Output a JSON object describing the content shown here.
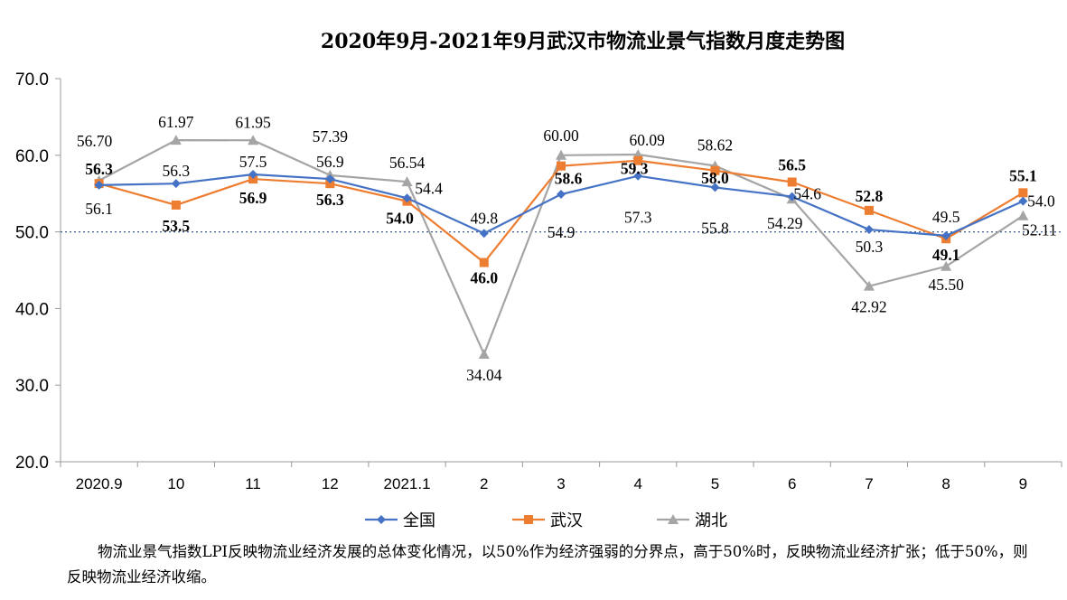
{
  "chart_data": {
    "type": "line",
    "title": "2020年9月-2021年9月武汉市物流业景气指数月度走势图",
    "categories": [
      "2020.9",
      "10",
      "11",
      "12",
      "2021.1",
      "2",
      "3",
      "4",
      "5",
      "6",
      "7",
      "8",
      "9"
    ],
    "ylim": [
      20,
      70
    ],
    "yticks": [
      "20.0",
      "30.0",
      "40.0",
      "50.0",
      "60.0",
      "70.0"
    ],
    "reference_line": 50,
    "grid": false,
    "legend_position": "bottom",
    "series": [
      {
        "name": "全国",
        "color": "#4472C4",
        "marker": "diamond",
        "values": [
          56.1,
          56.3,
          57.5,
          56.9,
          54.4,
          49.8,
          54.9,
          57.3,
          55.8,
          54.6,
          50.3,
          49.5,
          54.0
        ],
        "labels": [
          "56.1",
          "56.3",
          "57.5",
          "56.9",
          "54.4",
          "49.8",
          "54.9",
          "57.3",
          "55.8",
          "54.6",
          "50.3",
          "49.5",
          "54.0"
        ]
      },
      {
        "name": "武汉",
        "color": "#ED7D31",
        "marker": "square",
        "values": [
          56.3,
          53.5,
          56.9,
          56.3,
          54.0,
          46.0,
          58.6,
          59.3,
          58.0,
          56.5,
          52.8,
          49.1,
          55.1
        ],
        "labels": [
          "56.3",
          "53.5",
          "56.9",
          "56.3",
          "54.0",
          "46.0",
          "58.6",
          "59.3",
          "58.0",
          "56.5",
          "52.8",
          "49.1",
          "55.1"
        ]
      },
      {
        "name": "湖北",
        "color": "#A5A5A5",
        "marker": "triangle",
        "values": [
          56.7,
          61.97,
          61.95,
          57.39,
          56.54,
          34.04,
          60.0,
          60.09,
          58.62,
          54.29,
          42.92,
          45.5,
          52.11
        ],
        "labels": [
          "56.70",
          "61.97",
          "61.95",
          "57.39",
          "56.54",
          "34.04",
          "60.00",
          "60.09",
          "58.62",
          "54.29",
          "42.92",
          "45.50",
          "52.11"
        ]
      }
    ]
  },
  "note": "物流业景气指数LPI反映物流业经济发展的总体变化情况，以50%作为经济强弱的分界点，高于50%时，反映物流业经济扩张；低于50%，则反映物流业经济收缩。"
}
